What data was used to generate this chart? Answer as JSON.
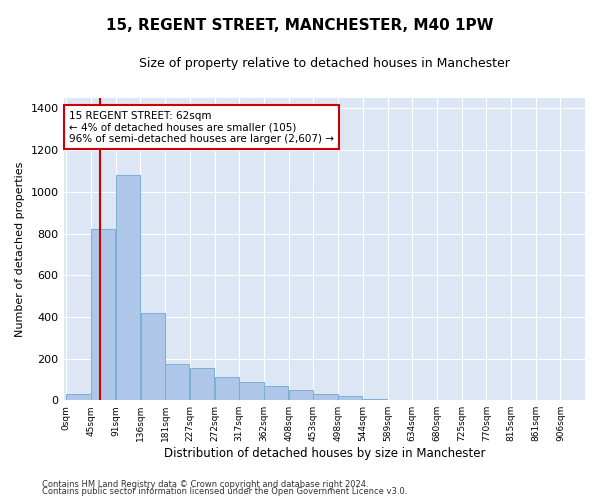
{
  "title": "15, REGENT STREET, MANCHESTER, M40 1PW",
  "subtitle": "Size of property relative to detached houses in Manchester",
  "xlabel": "Distribution of detached houses by size in Manchester",
  "ylabel": "Number of detached properties",
  "footnote1": "Contains HM Land Registry data © Crown copyright and database right 2024.",
  "footnote2": "Contains public sector information licensed under the Open Government Licence v3.0.",
  "bar_color": "#aec6e8",
  "bar_edge_color": "#7bafd4",
  "fig_background_color": "#ffffff",
  "plot_background_color": "#dce6f5",
  "grid_color": "#ffffff",
  "red_line_color": "#cc0000",
  "annotation_box_color": "#cc0000",
  "bin_edges": [
    0,
    45,
    91,
    136,
    181,
    227,
    272,
    317,
    362,
    408,
    453,
    498,
    544,
    589,
    634,
    680,
    725,
    770,
    815,
    861,
    906
  ],
  "bin_labels": [
    "0sqm",
    "45sqm",
    "91sqm",
    "136sqm",
    "181sqm",
    "227sqm",
    "272sqm",
    "317sqm",
    "362sqm",
    "408sqm",
    "453sqm",
    "498sqm",
    "544sqm",
    "589sqm",
    "634sqm",
    "680sqm",
    "725sqm",
    "770sqm",
    "815sqm",
    "861sqm",
    "906sqm"
  ],
  "bar_heights": [
    30,
    820,
    1080,
    420,
    175,
    155,
    110,
    85,
    70,
    50,
    30,
    20,
    8,
    2,
    1,
    0,
    0,
    0,
    0,
    0
  ],
  "ylim": [
    0,
    1450
  ],
  "yticks": [
    0,
    200,
    400,
    600,
    800,
    1000,
    1200,
    1400
  ],
  "property_label": "15 REGENT STREET: 62sqm",
  "annotation_line1": "← 4% of detached houses are smaller (105)",
  "annotation_line2": "96% of semi-detached houses are larger (2,607) →",
  "red_line_x": 62
}
